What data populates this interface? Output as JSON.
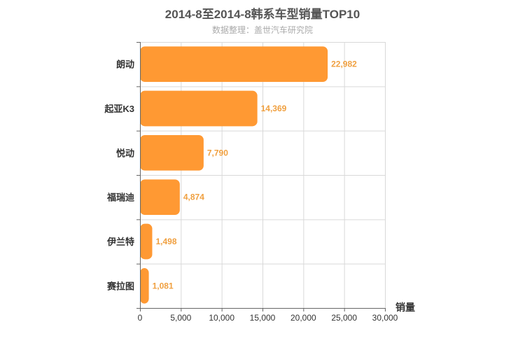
{
  "chart_data": {
    "type": "bar",
    "orientation": "horizontal",
    "title": "2014-8至2014-8韩系车型销量TOP10",
    "subtitle": "数据整理：盖世汽车研究院",
    "categories": [
      "朗动",
      "起亚K3",
      "悦动",
      "福瑞迪",
      "伊兰特",
      "赛拉图"
    ],
    "values": [
      22982,
      14369,
      7790,
      4874,
      1498,
      1081
    ],
    "value_labels": [
      "22,982",
      "14,369",
      "7,790",
      "4,874",
      "1,498",
      "1,081"
    ],
    "xlabel": "销量",
    "ylabel": "",
    "xlim": [
      0,
      30000
    ],
    "x_ticks": [
      0,
      5000,
      10000,
      15000,
      20000,
      25000,
      30000
    ],
    "x_tick_labels": [
      "0",
      "5,000",
      "10,000",
      "15,000",
      "20,000",
      "25,000",
      "30,000"
    ],
    "grid": true,
    "bar_color": "#ff9933",
    "label_color": "#f0a040"
  }
}
